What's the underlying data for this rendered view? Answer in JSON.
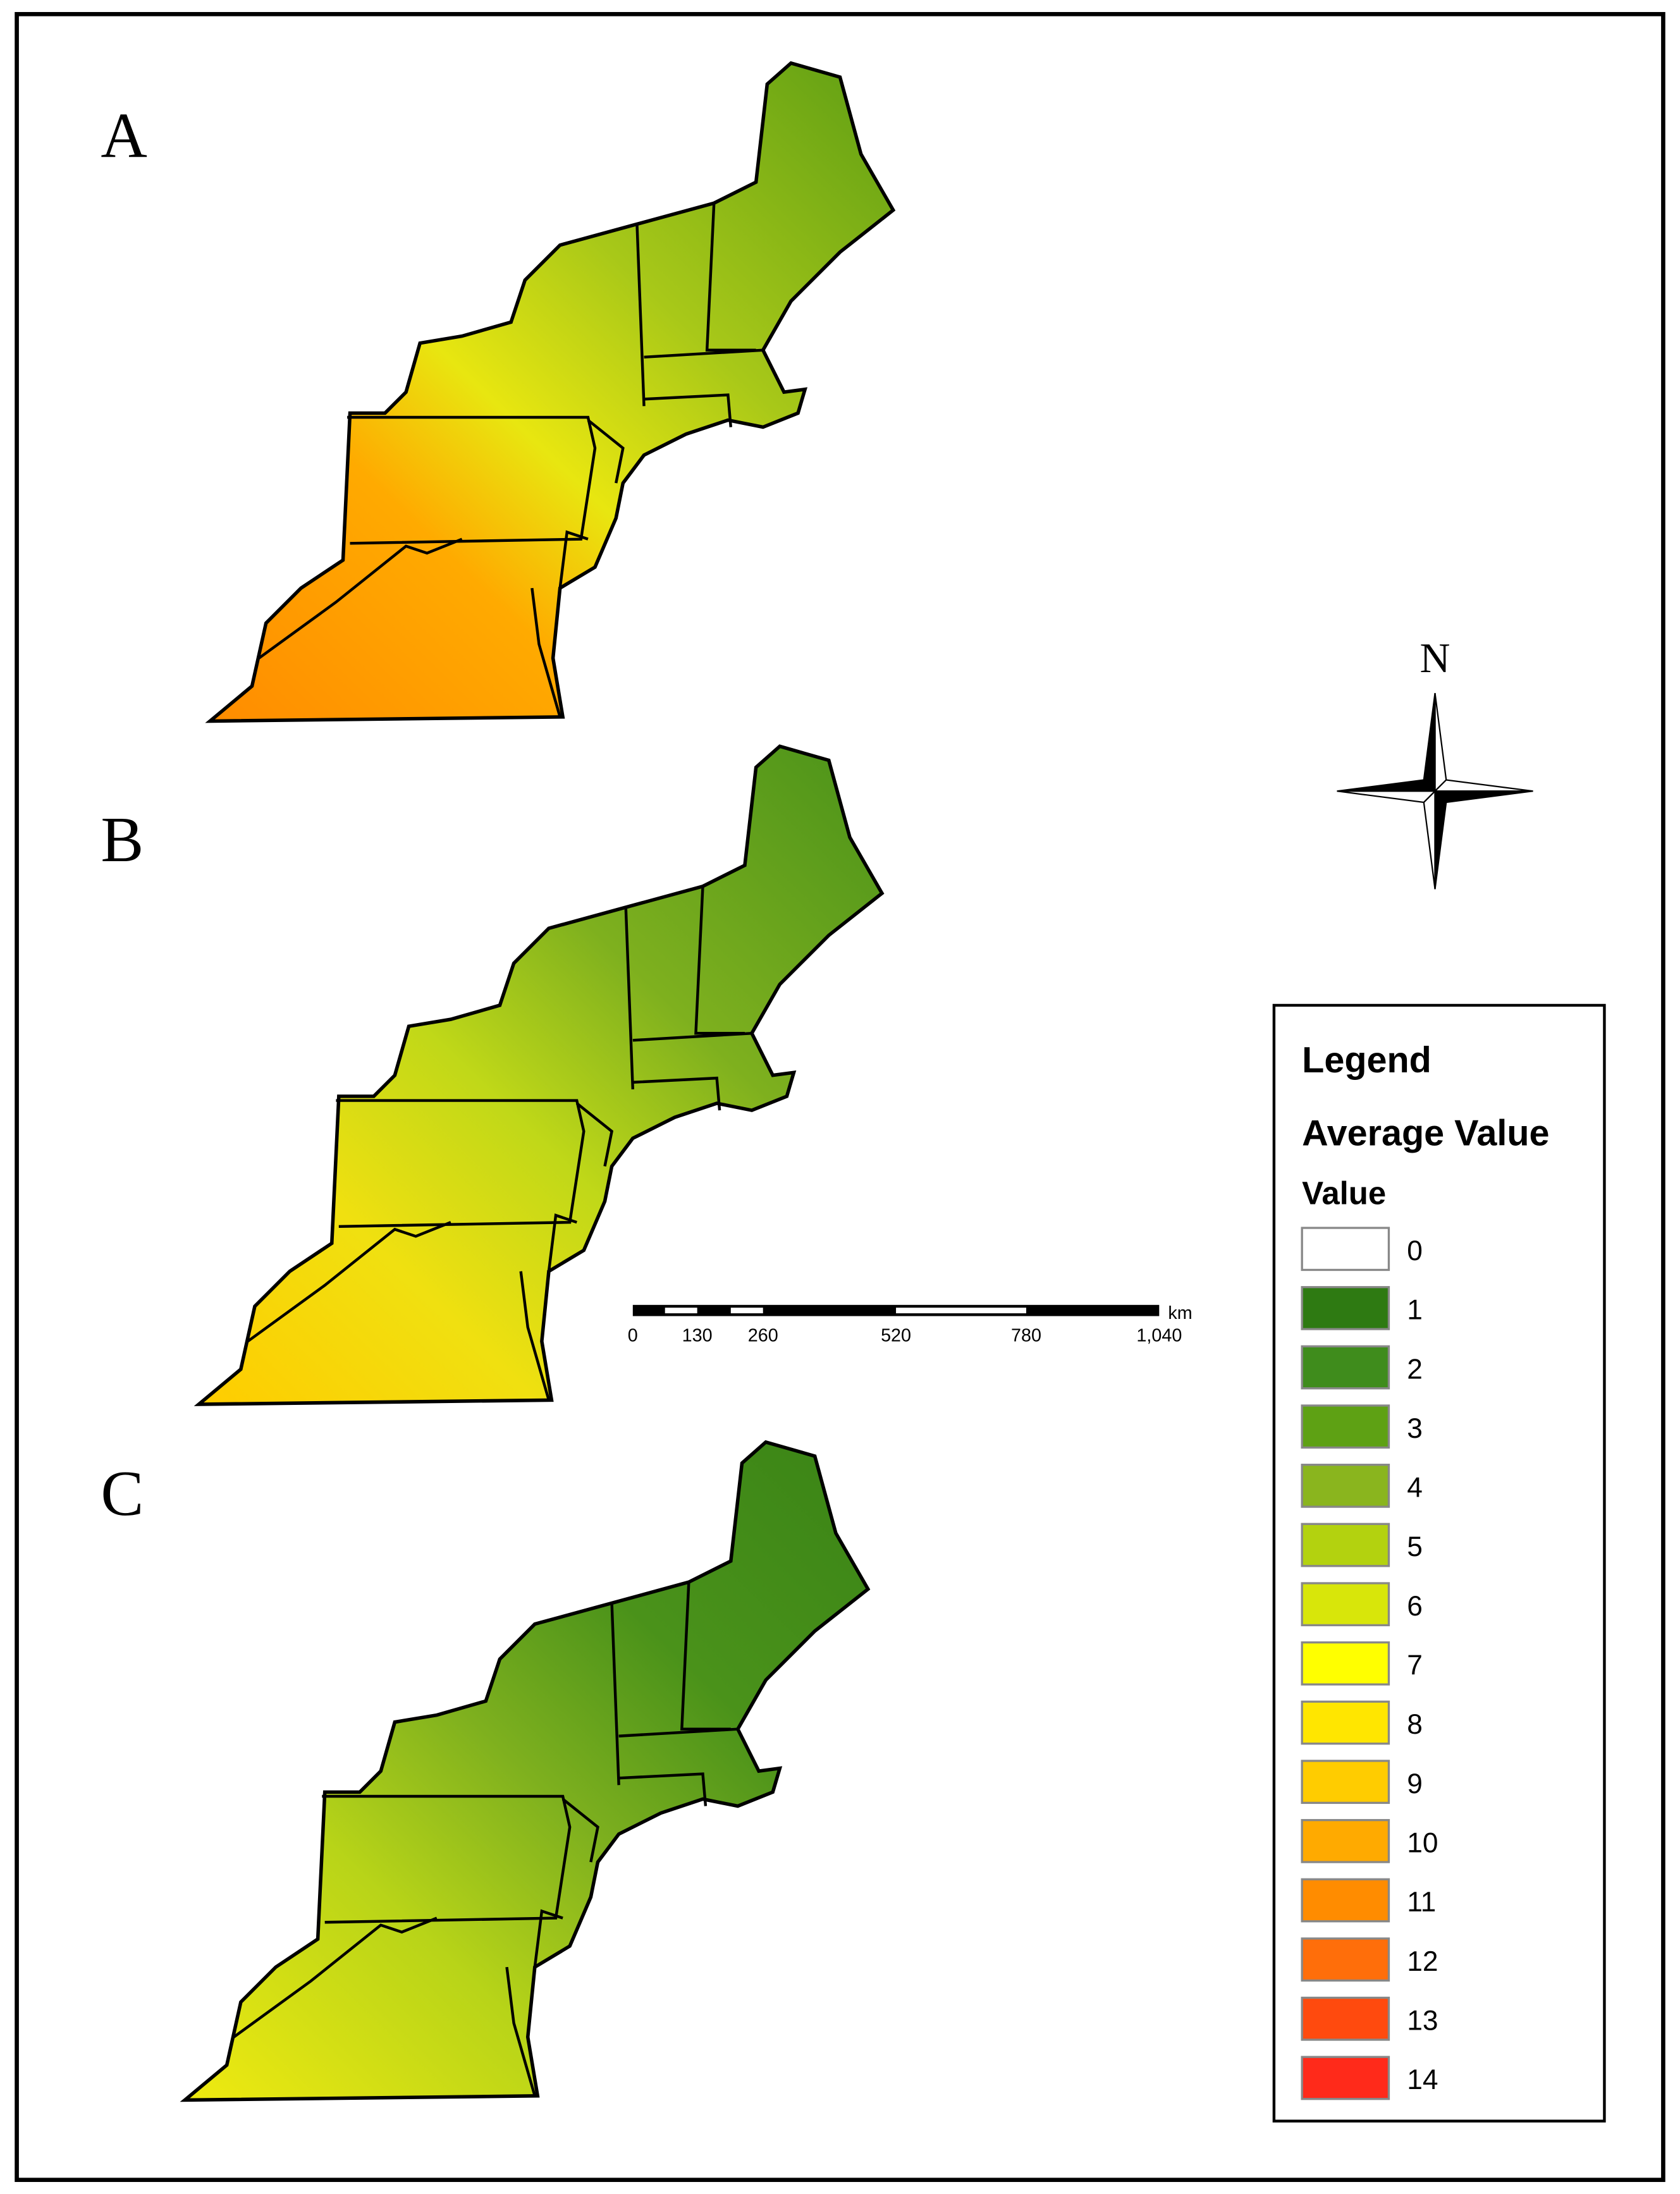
{
  "panels": [
    {
      "label": "A"
    },
    {
      "label": "B"
    },
    {
      "label": "C"
    }
  ],
  "north_arrow": {
    "label": "N"
  },
  "scale_bar": {
    "unit": "km",
    "labels": [
      "0",
      "130",
      "260",
      "520",
      "780",
      "1,040"
    ]
  },
  "legend": {
    "title": "Legend",
    "subtitle": "Average Value",
    "heading": "Value",
    "items": [
      {
        "value": 0,
        "color": "#ffffff"
      },
      {
        "value": 1,
        "color": "#2e7a12"
      },
      {
        "value": 2,
        "color": "#3f8c1c"
      },
      {
        "value": 3,
        "color": "#5ea114"
      },
      {
        "value": 4,
        "color": "#8ab51e"
      },
      {
        "value": 5,
        "color": "#b3d20f"
      },
      {
        "value": 6,
        "color": "#d8e60a"
      },
      {
        "value": 7,
        "color": "#ffff00"
      },
      {
        "value": 8,
        "color": "#ffe600"
      },
      {
        "value": 9,
        "color": "#ffcc00"
      },
      {
        "value": 10,
        "color": "#ffaa00"
      },
      {
        "value": 11,
        "color": "#ff8c00"
      },
      {
        "value": 12,
        "color": "#ff6e0a"
      },
      {
        "value": 13,
        "color": "#ff4a0e"
      },
      {
        "value": 14,
        "color": "#ff2a1a"
      }
    ]
  }
}
